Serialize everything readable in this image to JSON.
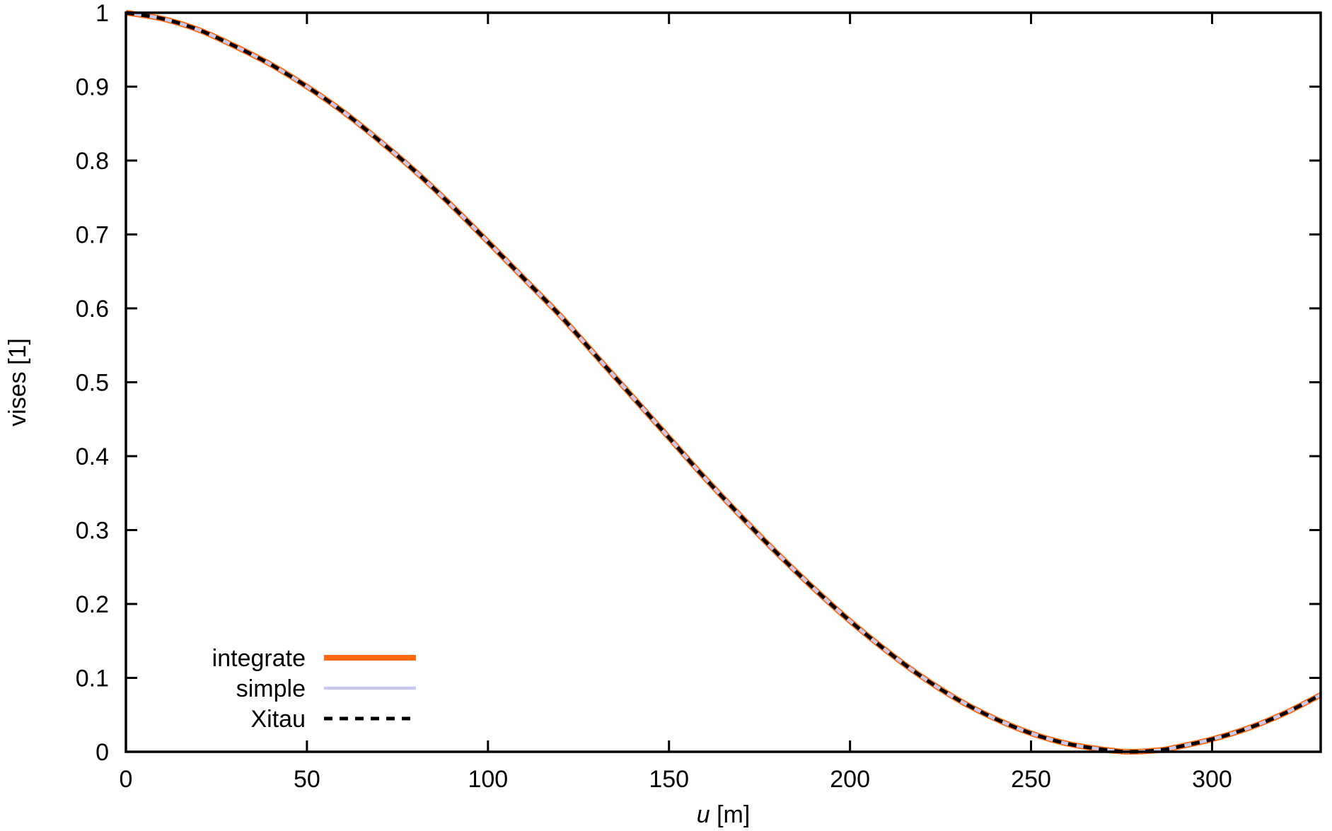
{
  "chart_data": {
    "type": "line",
    "title": "",
    "xlabel_var": "u",
    "xlabel_unit": " [m]",
    "ylabel": "vises [1]",
    "xlim": [
      0,
      330
    ],
    "ylim": [
      0,
      1
    ],
    "x_ticks": [
      0,
      50,
      100,
      150,
      200,
      250,
      300
    ],
    "x_tick_labels": [
      "0",
      "50",
      "100",
      "150",
      "200",
      "250",
      "300"
    ],
    "y_ticks": [
      0,
      0.1,
      0.2,
      0.3,
      0.4,
      0.5,
      0.6,
      0.7,
      0.8,
      0.9,
      1
    ],
    "y_tick_labels": [
      "0",
      "0.1",
      "0.2",
      "0.3",
      "0.4",
      "0.5",
      "0.6",
      "0.7",
      "0.8",
      "0.9",
      "1"
    ],
    "grid": false,
    "legend_position": "bottom-left",
    "x": [
      0,
      10,
      20,
      30,
      40,
      50,
      60,
      70,
      80,
      90,
      100,
      110,
      120,
      130,
      140,
      150,
      160,
      170,
      180,
      190,
      200,
      210,
      220,
      230,
      240,
      250,
      260,
      270,
      277,
      285,
      290,
      300,
      310,
      320,
      330
    ],
    "series": [
      {
        "name": "integrate",
        "color": "#ff6a10",
        "style": "solid-thick",
        "values": [
          1.0,
          0.992,
          0.977,
          0.955,
          0.93,
          0.9,
          0.866,
          0.827,
          0.785,
          0.739,
          0.69,
          0.64,
          0.59,
          0.535,
          0.48,
          0.425,
          0.37,
          0.318,
          0.268,
          0.221,
          0.177,
          0.137,
          0.101,
          0.07,
          0.045,
          0.025,
          0.011,
          0.003,
          0.0,
          0.002,
          0.006,
          0.017,
          0.032,
          0.052,
          0.077
        ]
      },
      {
        "name": "simple",
        "color": "#c8c8f0",
        "style": "solid",
        "values": [
          1.0,
          0.992,
          0.977,
          0.955,
          0.93,
          0.9,
          0.866,
          0.827,
          0.785,
          0.739,
          0.69,
          0.64,
          0.59,
          0.535,
          0.48,
          0.425,
          0.37,
          0.318,
          0.268,
          0.221,
          0.177,
          0.137,
          0.101,
          0.07,
          0.045,
          0.025,
          0.011,
          0.003,
          0.0,
          0.002,
          0.006,
          0.017,
          0.032,
          0.052,
          0.077
        ]
      },
      {
        "name": "Xitau",
        "color": "#000000",
        "style": "dashed",
        "values": [
          1.0,
          0.992,
          0.977,
          0.955,
          0.93,
          0.9,
          0.866,
          0.827,
          0.785,
          0.739,
          0.69,
          0.64,
          0.59,
          0.535,
          0.48,
          0.425,
          0.37,
          0.318,
          0.268,
          0.221,
          0.177,
          0.137,
          0.101,
          0.07,
          0.045,
          0.025,
          0.011,
          0.003,
          0.0,
          0.002,
          0.006,
          0.017,
          0.032,
          0.052,
          0.077
        ]
      }
    ]
  }
}
